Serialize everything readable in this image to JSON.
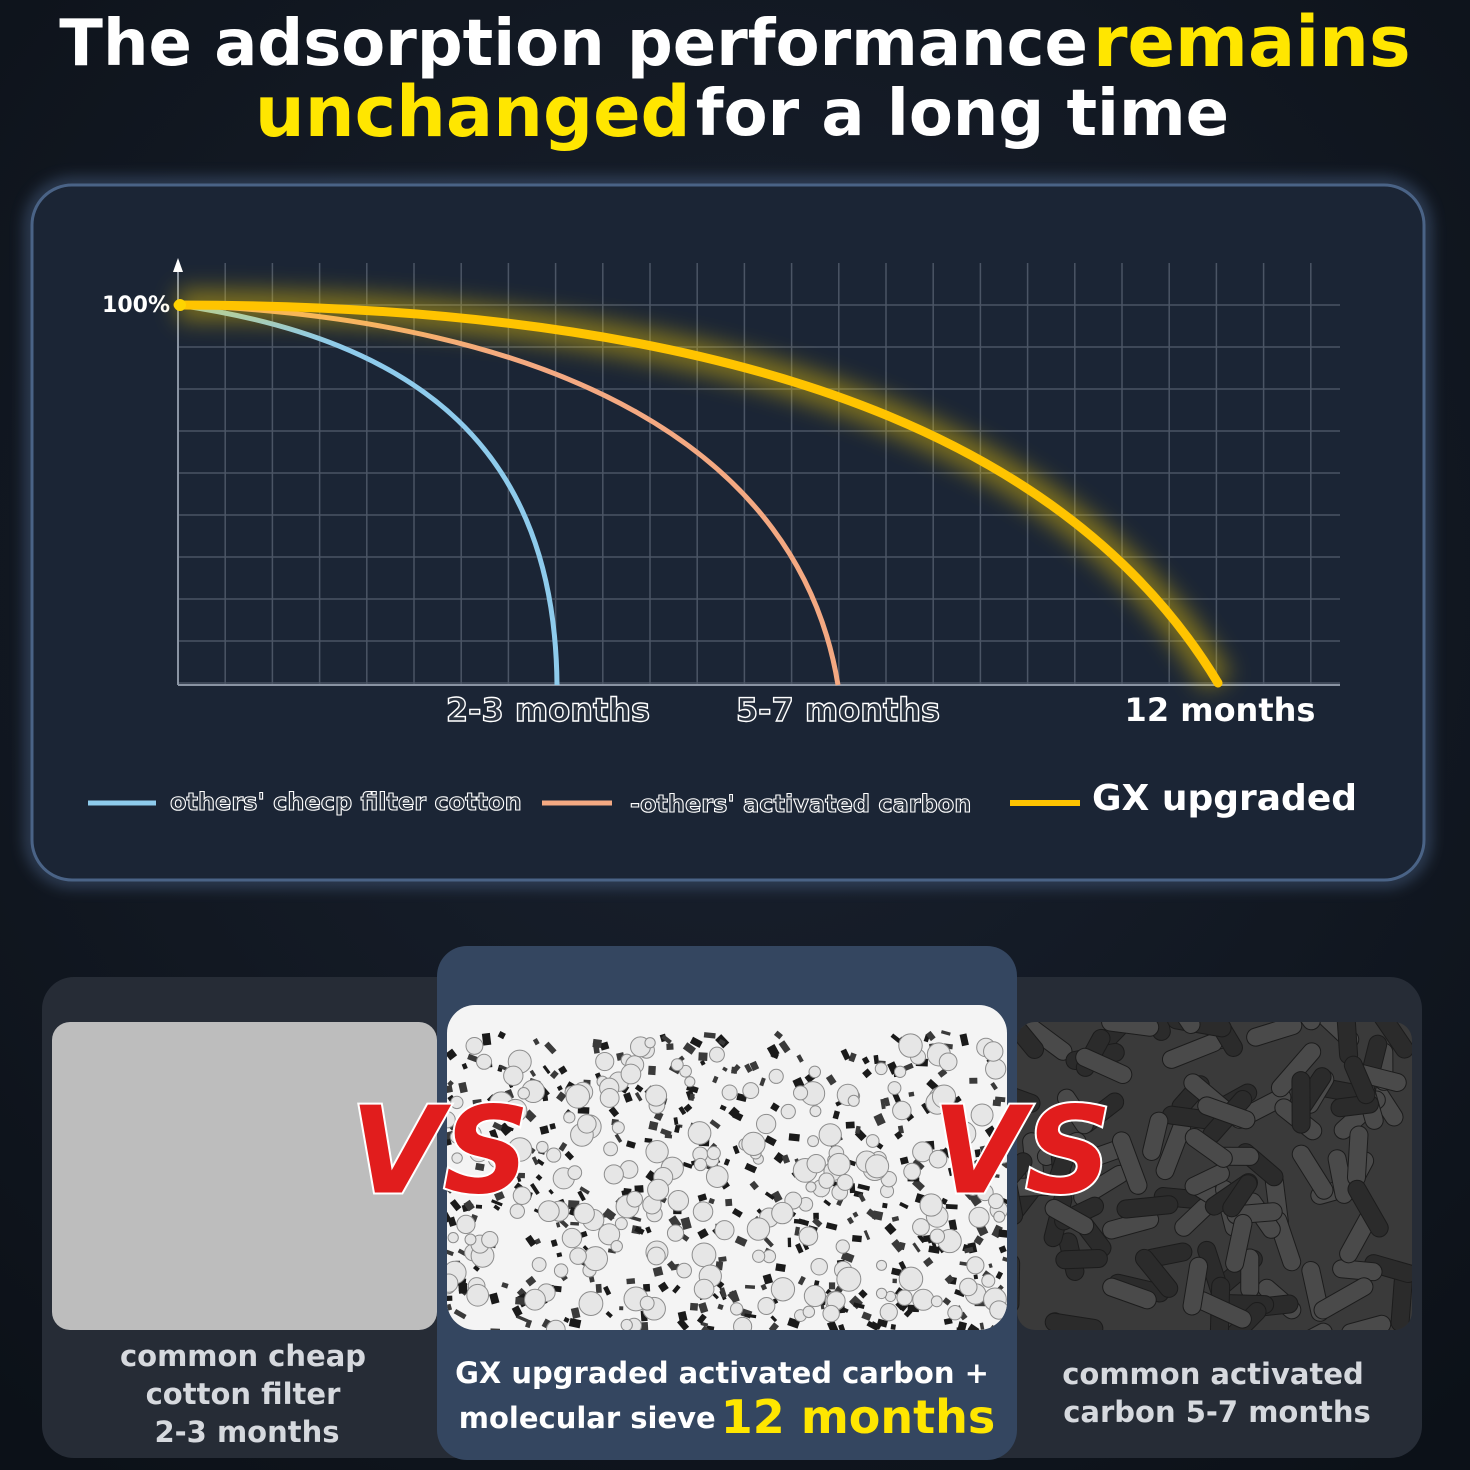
{
  "header": {
    "title_start": "The adsorption performance",
    "title_highlight_1": "remains",
    "title_highlight_2": "unchanged",
    "title_end": "for a long time"
  },
  "chart": {
    "y_label": "100%",
    "x_labels": [
      "2-3 months",
      "5-7 months",
      "12 months"
    ],
    "legend": [
      "others' checp filter cotton",
      "-others' activated carbon",
      "GX upgraded"
    ]
  },
  "panels": {
    "left": [
      "common cheap",
      "cotton filter",
      "2-3 months"
    ],
    "middle": {
      "line_1": "GX upgraded activated carbon +",
      "line_2": "molecular sieve",
      "highlight": "12 months"
    },
    "right": [
      "common activated",
      "carbon 5-7 months"
    ],
    "vs": [
      "VS",
      "VS"
    ]
  }
}
